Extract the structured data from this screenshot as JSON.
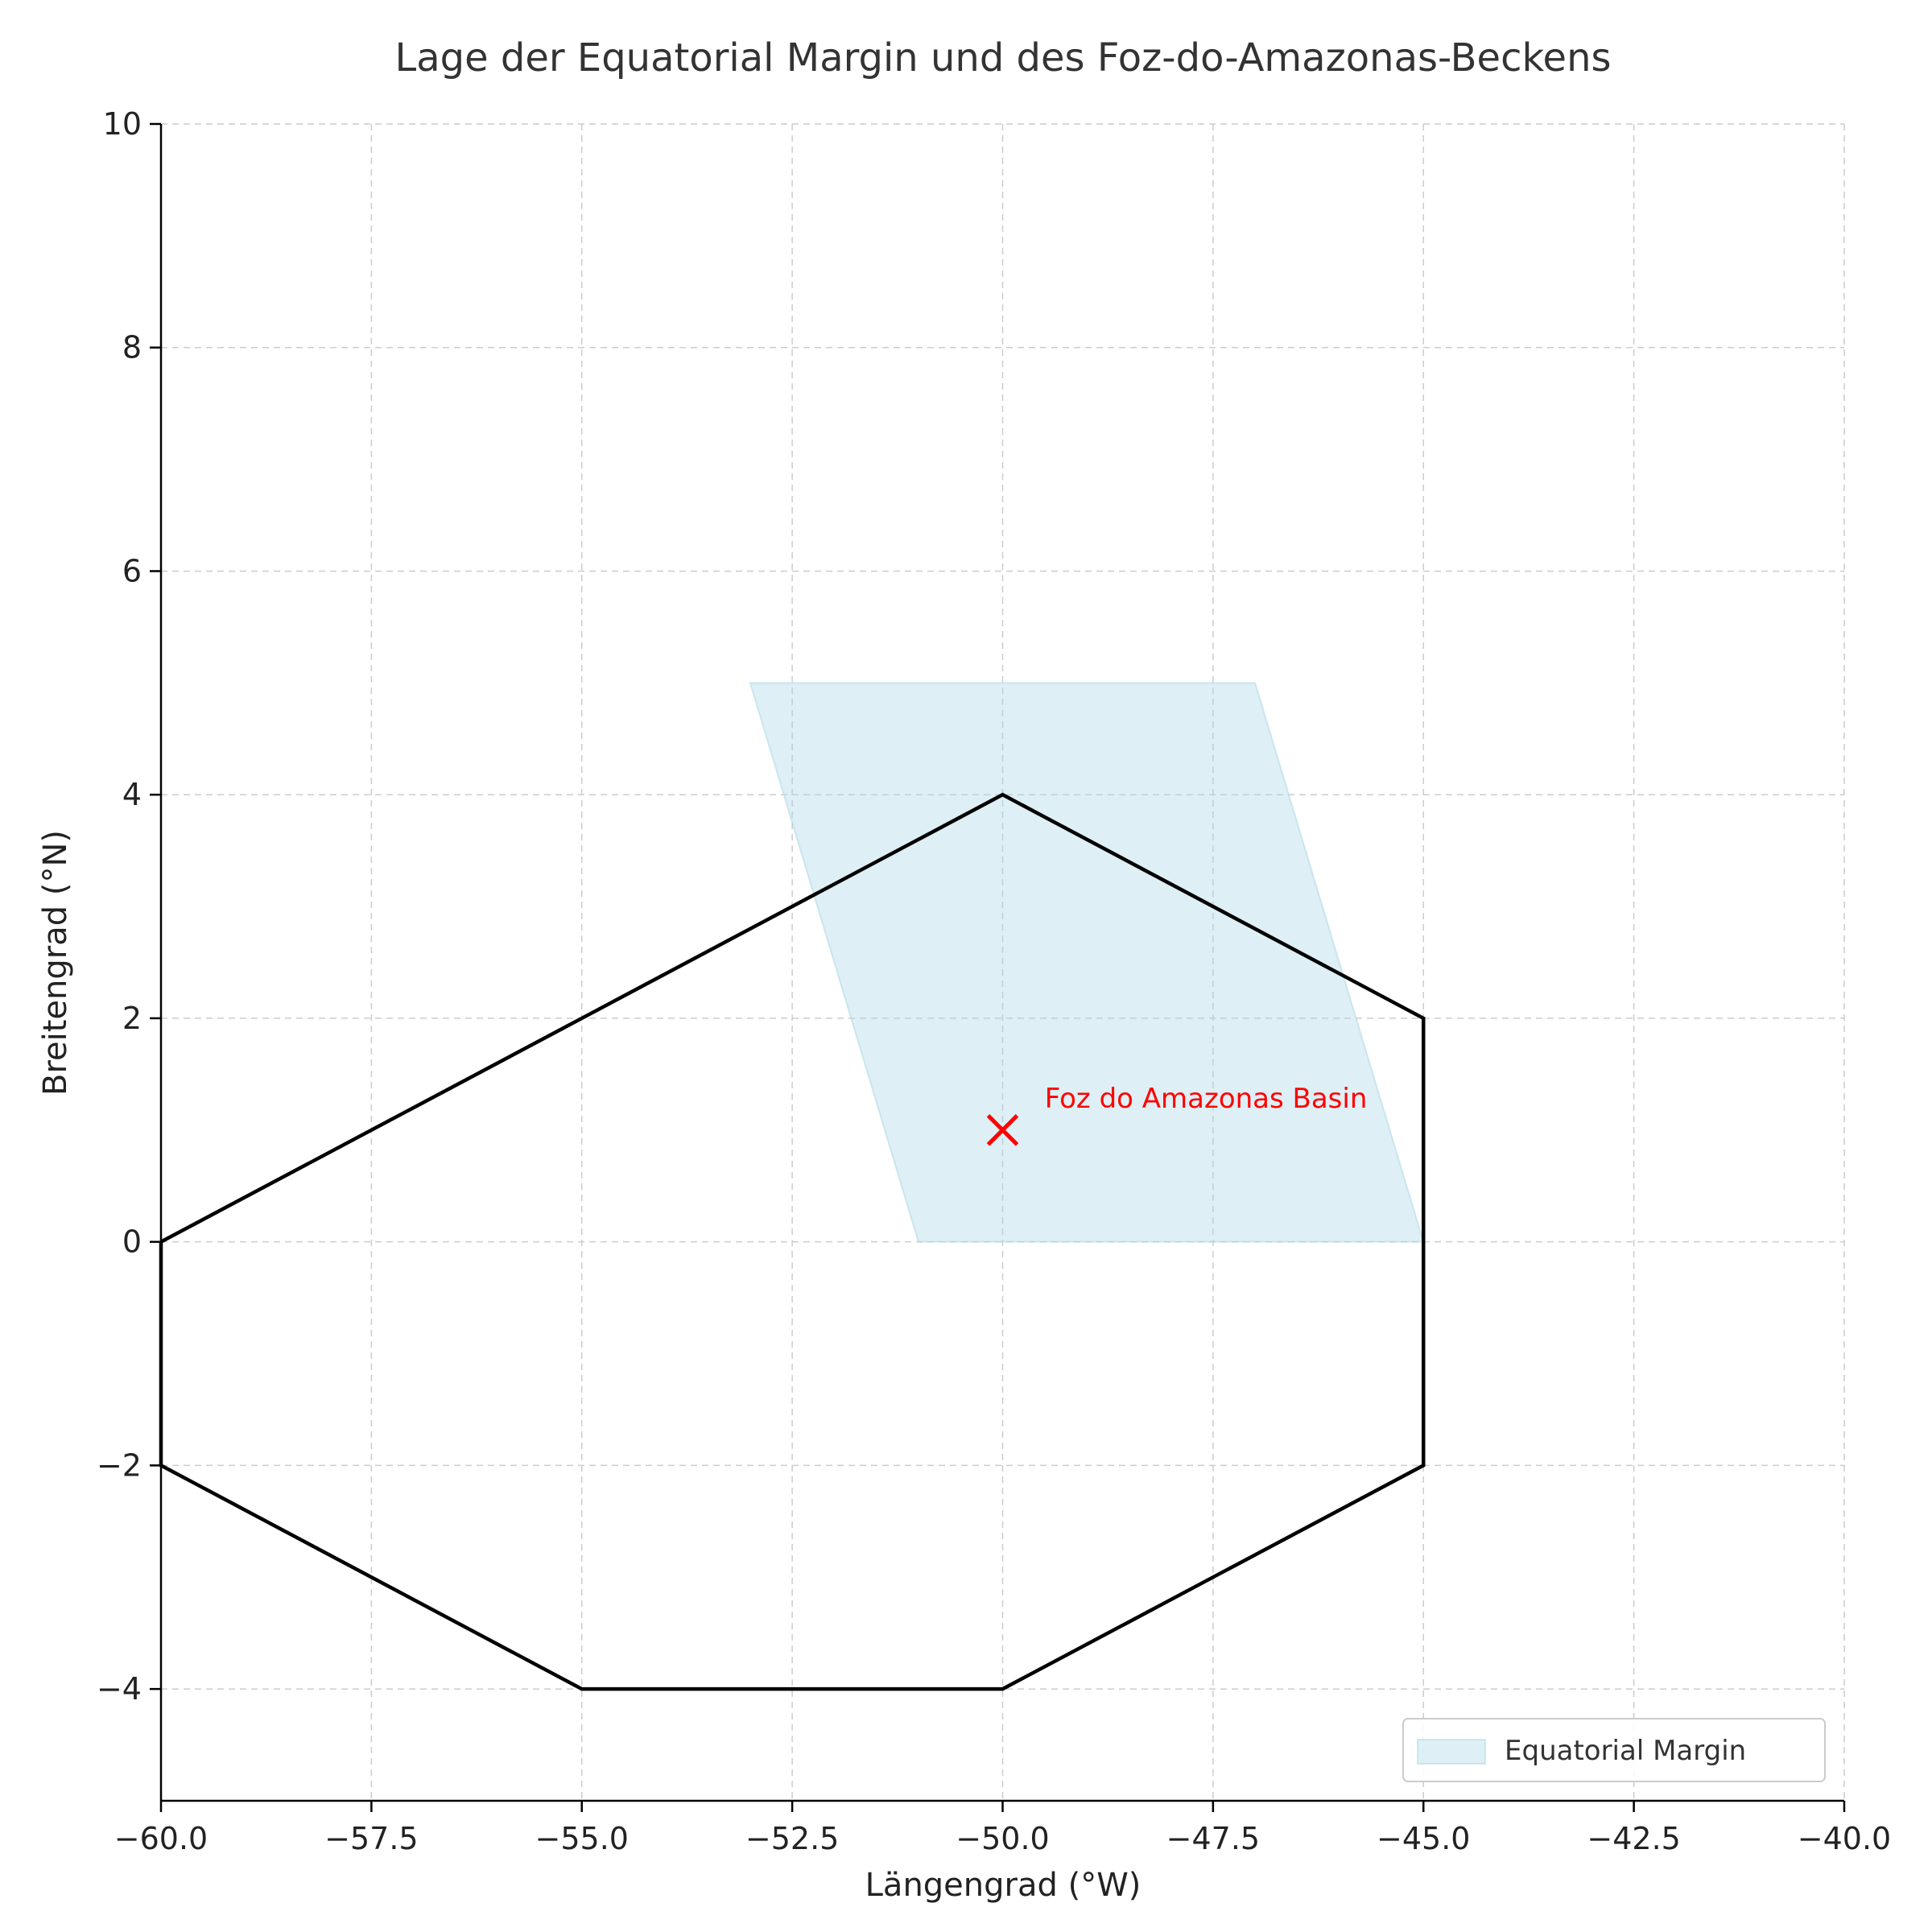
{
  "chart_data": {
    "type": "line",
    "title": "Lage der Equatorial Margin und des Foz-do-Amazonas-Beckens",
    "xlabel": "Längengrad (°W)",
    "ylabel": "Breitengrad (°N)",
    "xlim": [
      -60,
      -40
    ],
    "ylim": [
      -5,
      10
    ],
    "x_ticks": [
      -60,
      -57.5,
      -55,
      -52.5,
      -50,
      -47.5,
      -45,
      -42.5,
      -40
    ],
    "x_tick_labels": [
      "−60.0",
      "−57.5",
      "−55.0",
      "−52.5",
      "−50.0",
      "−47.5",
      "−45.0",
      "−42.5",
      "−40.0"
    ],
    "y_ticks": [
      -4,
      -2,
      0,
      2,
      4,
      6,
      8,
      10
    ],
    "y_tick_labels": [
      "−4",
      "−2",
      "0",
      "2",
      "4",
      "6",
      "8",
      "10"
    ],
    "grid": true,
    "outline": {
      "color": "#000000",
      "points": [
        [
          -60,
          0
        ],
        [
          -55,
          2
        ],
        [
          -50,
          4
        ],
        [
          -45,
          2
        ],
        [
          -45,
          -2
        ],
        [
          -50,
          -4
        ],
        [
          -55,
          -4
        ],
        [
          -60,
          -2
        ],
        [
          -60,
          0
        ]
      ]
    },
    "region": {
      "name": "Equatorial Margin",
      "color": "#add8e6",
      "opacity": 0.4,
      "points": [
        [
          -53,
          5
        ],
        [
          -47,
          5
        ],
        [
          -45,
          0
        ],
        [
          -51,
          0
        ]
      ]
    },
    "marker": {
      "x": -50,
      "y": 1,
      "symbol": "x",
      "color": "#ff0000",
      "label": "Foz do Amazonas Basin",
      "label_x": -49.5,
      "label_y": 1.2
    },
    "legend": {
      "placement": "lower-right",
      "entries": [
        "Equatorial Margin"
      ]
    }
  }
}
